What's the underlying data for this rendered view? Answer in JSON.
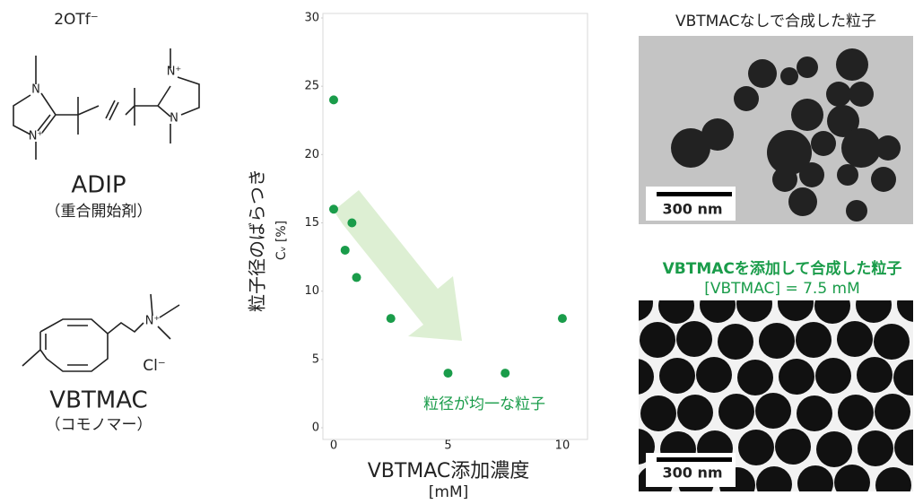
{
  "structures": {
    "counterion": "2OTf⁻",
    "adip_name": "ADIP",
    "adip_role": "（重合開始剤）",
    "adip_atoms": [
      "N",
      "N⁺",
      "N⁺",
      "N"
    ],
    "vbtmac_atom": "N⁺",
    "chloride": "Cl⁻",
    "vbtmac_name": "VBTMAC",
    "vbtmac_role": "（コモノマー）"
  },
  "chart_data": {
    "type": "scatter",
    "y_label": "粒子径のばらつき",
    "y_unit": "Cᵥ [%]",
    "x_label": "VBTMAC添加濃度",
    "x_unit": "[mM]",
    "annotation": "粒径が均一な粒子",
    "x": [
      0,
      0,
      0.5,
      0.8,
      1,
      2.5,
      5,
      7.5,
      10
    ],
    "values": [
      24,
      16,
      13,
      15,
      11,
      8,
      4,
      4,
      8
    ],
    "color": "#1a9c4a",
    "xlim": [
      -0.47,
      11.1
    ],
    "ylim": [
      0,
      30
    ],
    "xticks": [
      0,
      5,
      10
    ],
    "yticks": [
      0,
      5,
      10,
      15,
      20,
      25,
      30
    ]
  },
  "images": [
    {
      "title": "VBTMACなしで合成した粒子",
      "scale_bar": "300 nm"
    },
    {
      "title": "VBTMACを添加して合成した粒子",
      "subtitle": "[VBTMAC] = 7.5 mM",
      "scale_bar": "300 nm"
    }
  ]
}
